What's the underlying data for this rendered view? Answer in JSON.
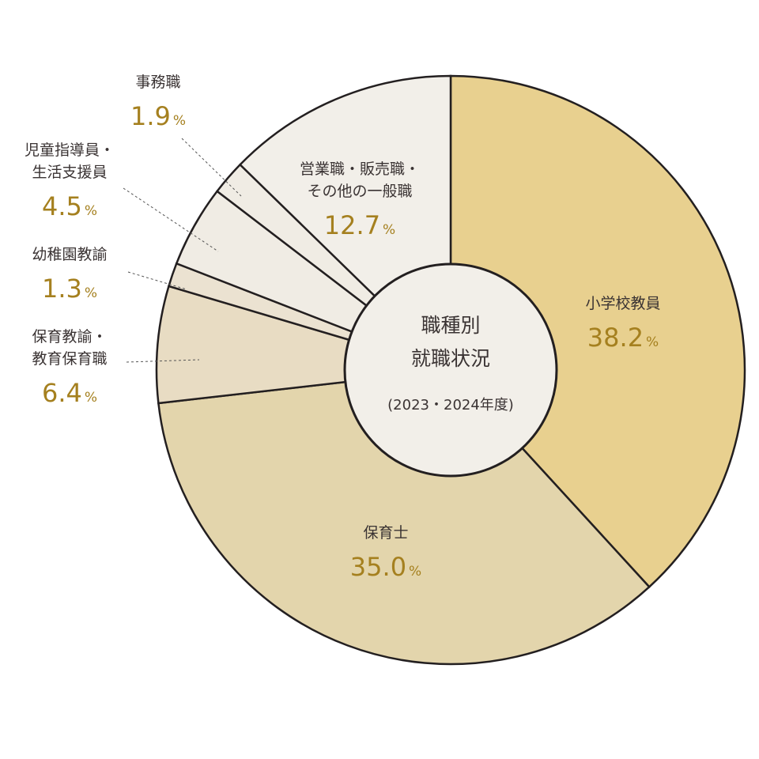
{
  "chart_data": {
    "type": "pie",
    "center_label": {
      "lines": [
        "職種別",
        "就職状況"
      ],
      "sub": "(2023・2024年度)"
    },
    "slices": [
      {
        "label": [
          "小学校教員"
        ],
        "value": 38.2,
        "value_text": "38.2",
        "color": "#e8d08f"
      },
      {
        "label": [
          "保育士"
        ],
        "value": 35.0,
        "value_text": "35.0",
        "color": "#e3d5ac"
      },
      {
        "label": [
          "保育教諭・",
          "教育保育職"
        ],
        "value": 6.4,
        "value_text": "6.4",
        "color": "#e8dcc3"
      },
      {
        "label": [
          "幼稚園教諭"
        ],
        "value": 1.3,
        "value_text": "1.3",
        "color": "#ebe2d1"
      },
      {
        "label": [
          "児童指導員・",
          "生活支援員"
        ],
        "value": 4.5,
        "value_text": "4.5",
        "color": "#f0ece4"
      },
      {
        "label": [
          "事務職"
        ],
        "value": 1.9,
        "value_text": "1.9",
        "color": "#f0ece4"
      },
      {
        "label": [
          "営業職・販売職・",
          "その他の一般職"
        ],
        "value": 12.7,
        "value_text": "12.7",
        "color": "#f2efe9"
      }
    ],
    "percent_symbol": "%",
    "colors": {
      "value_text": "#a5801f",
      "outline": "#231f20",
      "center_fill": "#f2efe9"
    }
  }
}
